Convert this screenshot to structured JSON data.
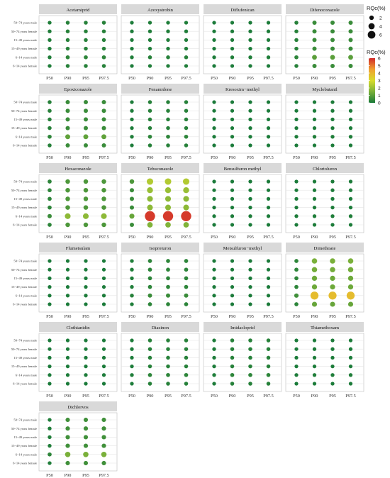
{
  "chart_data": {
    "type": "scatter",
    "description_type": "faceted dot plot",
    "x_categories": [
      "P50",
      "P90",
      "P95",
      "P97.5"
    ],
    "y_categories": [
      "50~74 years male",
      "50~74 years female",
      "15~49 years male",
      "15~49 years female",
      "6~14 years male",
      "6~14 years female"
    ],
    "size_legend": {
      "title": "RQc(%)",
      "values": [
        2,
        4,
        6
      ]
    },
    "color_legend": {
      "title": "RQc(%)",
      "min": 0,
      "max": 6,
      "ticks": [
        0,
        1,
        2,
        3,
        4,
        5,
        6
      ],
      "colors": [
        "#1a7a3a",
        "#7ab03a",
        "#d8dc2c",
        "#f0a030",
        "#d12a2a"
      ]
    },
    "panels": [
      {
        "title": "Acetamiprid",
        "values": [
          [
            0.1,
            0.2,
            0.2,
            0.2
          ],
          [
            0.1,
            0.2,
            0.2,
            0.2
          ],
          [
            0.1,
            0.2,
            0.2,
            0.2
          ],
          [
            0.1,
            0.2,
            0.2,
            0.2
          ],
          [
            0.1,
            0.3,
            0.3,
            0.3
          ],
          [
            0.1,
            0.2,
            0.2,
            0.2
          ]
        ]
      },
      {
        "title": "Azoxystrobin",
        "values": [
          [
            0.05,
            0.1,
            0.1,
            0.1
          ],
          [
            0.05,
            0.1,
            0.1,
            0.1
          ],
          [
            0.05,
            0.1,
            0.1,
            0.1
          ],
          [
            0.05,
            0.1,
            0.1,
            0.1
          ],
          [
            0.1,
            0.2,
            0.2,
            0.2
          ],
          [
            0.05,
            0.1,
            0.1,
            0.1
          ]
        ]
      },
      {
        "title": "Diflufenican",
        "values": [
          [
            0.02,
            0.05,
            0.05,
            0.05
          ],
          [
            0.02,
            0.05,
            0.05,
            0.05
          ],
          [
            0.02,
            0.05,
            0.05,
            0.05
          ],
          [
            0.02,
            0.05,
            0.05,
            0.05
          ],
          [
            0.05,
            0.1,
            0.1,
            0.1
          ],
          [
            0.02,
            0.05,
            0.05,
            0.05
          ]
        ]
      },
      {
        "title": "Difenoconazole",
        "values": [
          [
            0.2,
            0.5,
            0.5,
            0.5
          ],
          [
            0.2,
            0.5,
            0.5,
            0.5
          ],
          [
            0.2,
            0.5,
            0.5,
            0.5
          ],
          [
            0.2,
            0.5,
            0.5,
            0.5
          ],
          [
            0.3,
            1.0,
            1.0,
            1.0
          ],
          [
            0.2,
            0.5,
            0.5,
            0.5
          ]
        ]
      },
      {
        "title": "Epoxiconazole",
        "values": [
          [
            0.2,
            0.5,
            0.5,
            0.5
          ],
          [
            0.2,
            0.5,
            0.5,
            0.5
          ],
          [
            0.2,
            0.5,
            0.5,
            0.5
          ],
          [
            0.2,
            0.5,
            0.5,
            0.5
          ],
          [
            0.3,
            1.1,
            1.1,
            1.1
          ],
          [
            0.2,
            0.5,
            0.5,
            0.5
          ]
        ]
      },
      {
        "title": "Fenamidone",
        "values": [
          [
            0.05,
            0.2,
            0.2,
            0.2
          ],
          [
            0.05,
            0.2,
            0.2,
            0.2
          ],
          [
            0.05,
            0.2,
            0.2,
            0.2
          ],
          [
            0.05,
            0.2,
            0.2,
            0.2
          ],
          [
            0.1,
            0.3,
            0.3,
            0.3
          ],
          [
            0.05,
            0.2,
            0.2,
            0.2
          ]
        ]
      },
      {
        "title": "Kresoxim−methyl",
        "values": [
          [
            0.01,
            0.02,
            0.02,
            0.02
          ],
          [
            0.01,
            0.02,
            0.02,
            0.02
          ],
          [
            0.01,
            0.02,
            0.02,
            0.02
          ],
          [
            0.01,
            0.02,
            0.02,
            0.02
          ],
          [
            0.02,
            0.05,
            0.05,
            0.05
          ],
          [
            0.01,
            0.02,
            0.02,
            0.02
          ]
        ]
      },
      {
        "title": "Myclobutanil",
        "values": [
          [
            0.02,
            0.05,
            0.05,
            0.05
          ],
          [
            0.02,
            0.05,
            0.05,
            0.05
          ],
          [
            0.02,
            0.05,
            0.05,
            0.05
          ],
          [
            0.02,
            0.05,
            0.05,
            0.05
          ],
          [
            0.05,
            0.1,
            0.1,
            0.1
          ],
          [
            0.02,
            0.05,
            0.05,
            0.05
          ]
        ]
      },
      {
        "title": "Hexaconazole",
        "values": [
          [
            0.3,
            0.8,
            0.8,
            0.8
          ],
          [
            0.3,
            0.8,
            0.8,
            0.8
          ],
          [
            0.3,
            0.8,
            0.8,
            0.8
          ],
          [
            0.3,
            0.8,
            0.8,
            0.8
          ],
          [
            0.5,
            1.8,
            1.8,
            1.8
          ],
          [
            0.3,
            0.8,
            0.8,
            0.8
          ]
        ]
      },
      {
        "title": "Tebuconazole",
        "values": [
          [
            0.8,
            2.4,
            2.4,
            2.4
          ],
          [
            0.5,
            2.0,
            2.0,
            2.0
          ],
          [
            0.5,
            1.8,
            1.8,
            1.8
          ],
          [
            0.5,
            1.8,
            1.8,
            1.8
          ],
          [
            1.2,
            5.8,
            5.8,
            5.8
          ],
          [
            0.5,
            1.6,
            1.6,
            1.6
          ]
        ]
      },
      {
        "title": "Bensulfuron methyl",
        "values": [
          [
            0.01,
            0.02,
            0.02,
            0.02
          ],
          [
            0.01,
            0.02,
            0.02,
            0.02
          ],
          [
            0.01,
            0.02,
            0.02,
            0.02
          ],
          [
            0.01,
            0.02,
            0.02,
            0.02
          ],
          [
            0.02,
            0.05,
            0.05,
            0.05
          ],
          [
            0.01,
            0.02,
            0.02,
            0.02
          ]
        ]
      },
      {
        "title": "Chlortoluron",
        "values": [
          [
            0.02,
            0.05,
            0.05,
            0.05
          ],
          [
            0.02,
            0.05,
            0.05,
            0.05
          ],
          [
            0.02,
            0.05,
            0.05,
            0.05
          ],
          [
            0.02,
            0.05,
            0.05,
            0.05
          ],
          [
            0.05,
            0.1,
            0.1,
            0.1
          ],
          [
            0.02,
            0.05,
            0.05,
            0.05
          ]
        ]
      },
      {
        "title": "Flumetsulam",
        "values": [
          [
            0.01,
            0.02,
            0.02,
            0.02
          ],
          [
            0.01,
            0.02,
            0.02,
            0.02
          ],
          [
            0.01,
            0.02,
            0.02,
            0.02
          ],
          [
            0.01,
            0.02,
            0.02,
            0.02
          ],
          [
            0.02,
            0.05,
            0.05,
            0.05
          ],
          [
            0.01,
            0.02,
            0.02,
            0.02
          ]
        ]
      },
      {
        "title": "Isoproturon",
        "values": [
          [
            0.1,
            0.3,
            0.3,
            0.3
          ],
          [
            0.1,
            0.3,
            0.3,
            0.3
          ],
          [
            0.1,
            0.3,
            0.3,
            0.3
          ],
          [
            0.1,
            0.3,
            0.3,
            0.3
          ],
          [
            0.2,
            0.5,
            0.5,
            0.5
          ],
          [
            0.1,
            0.3,
            0.3,
            0.3
          ]
        ]
      },
      {
        "title": "Metsulfuron−methyl",
        "values": [
          [
            0.01,
            0.01,
            0.01,
            0.01
          ],
          [
            0.01,
            0.01,
            0.01,
            0.01
          ],
          [
            0.01,
            0.01,
            0.01,
            0.01
          ],
          [
            0.01,
            0.01,
            0.01,
            0.01
          ],
          [
            0.02,
            0.03,
            0.03,
            0.03
          ],
          [
            0.01,
            0.01,
            0.01,
            0.01
          ]
        ]
      },
      {
        "title": "Dimethoate",
        "values": [
          [
            0.3,
            1.5,
            1.5,
            1.5
          ],
          [
            0.3,
            1.4,
            1.4,
            1.4
          ],
          [
            0.3,
            1.3,
            1.3,
            1.3
          ],
          [
            0.3,
            1.3,
            1.3,
            1.3
          ],
          [
            0.6,
            3.8,
            3.8,
            3.8
          ],
          [
            0.3,
            1.2,
            1.2,
            1.2
          ]
        ]
      },
      {
        "title": "Clothianidin",
        "values": [
          [
            0.01,
            0.02,
            0.02,
            0.02
          ],
          [
            0.01,
            0.02,
            0.02,
            0.02
          ],
          [
            0.01,
            0.02,
            0.02,
            0.02
          ],
          [
            0.01,
            0.02,
            0.02,
            0.02
          ],
          [
            0.02,
            0.05,
            0.05,
            0.05
          ],
          [
            0.01,
            0.02,
            0.02,
            0.02
          ]
        ]
      },
      {
        "title": "Diazinon",
        "values": [
          [
            0.05,
            0.2,
            0.2,
            0.2
          ],
          [
            0.05,
            0.2,
            0.2,
            0.2
          ],
          [
            0.05,
            0.2,
            0.2,
            0.2
          ],
          [
            0.05,
            0.2,
            0.2,
            0.2
          ],
          [
            0.1,
            0.3,
            0.3,
            0.3
          ],
          [
            0.05,
            0.2,
            0.2,
            0.2
          ]
        ]
      },
      {
        "title": "Imidacloprid",
        "values": [
          [
            0.05,
            0.2,
            0.2,
            0.2
          ],
          [
            0.05,
            0.2,
            0.2,
            0.2
          ],
          [
            0.05,
            0.2,
            0.2,
            0.2
          ],
          [
            0.05,
            0.2,
            0.2,
            0.2
          ],
          [
            0.1,
            0.3,
            0.3,
            0.3
          ],
          [
            0.05,
            0.2,
            0.2,
            0.2
          ]
        ]
      },
      {
        "title": "Thiamethoxam",
        "values": [
          [
            0.02,
            0.05,
            0.05,
            0.05
          ],
          [
            0.02,
            0.05,
            0.05,
            0.05
          ],
          [
            0.02,
            0.05,
            0.05,
            0.05
          ],
          [
            0.02,
            0.05,
            0.05,
            0.05
          ],
          [
            0.05,
            0.1,
            0.1,
            0.1
          ],
          [
            0.02,
            0.05,
            0.05,
            0.05
          ]
        ]
      },
      {
        "title": "Dichlorvos",
        "values": [
          [
            0.1,
            0.6,
            0.6,
            0.6
          ],
          [
            0.1,
            0.6,
            0.6,
            0.6
          ],
          [
            0.1,
            0.6,
            0.6,
            0.6
          ],
          [
            0.1,
            0.6,
            0.6,
            0.6
          ],
          [
            0.3,
            1.5,
            1.5,
            1.5
          ],
          [
            0.1,
            0.6,
            0.6,
            0.6
          ]
        ]
      }
    ]
  }
}
